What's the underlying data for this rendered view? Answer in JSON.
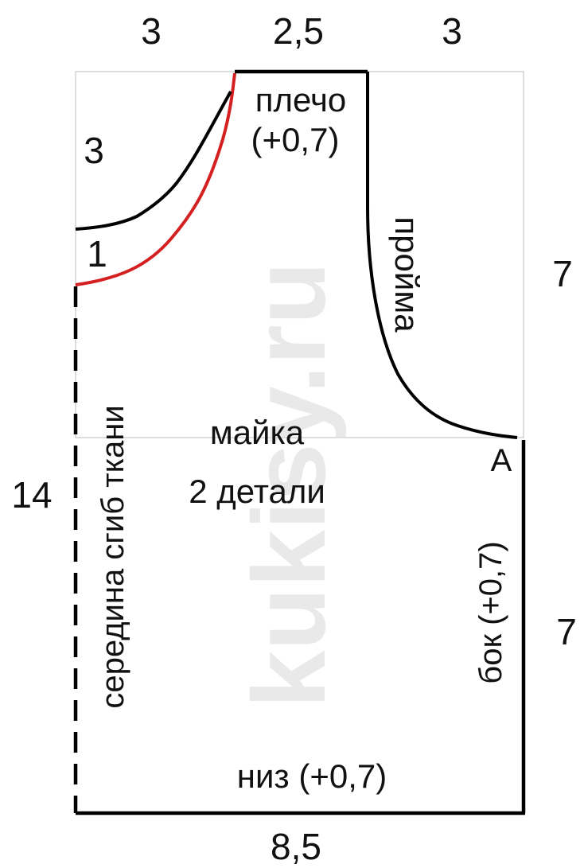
{
  "colors": {
    "outline": "#000000",
    "neckline_option": "#d42020",
    "guide_lines": "#c8c8c8",
    "watermark": "#dcdcdc",
    "text": "#111111"
  },
  "dimensions": {
    "top_left": "3",
    "top_middle": "2,5",
    "top_right": "3",
    "neck_depth_upper": "3",
    "neck_depth_lower": "1",
    "right_upper": "7",
    "right_lower": "7",
    "left": "14",
    "bottom": "8,5"
  },
  "labels": {
    "shoulder": "плечо",
    "shoulder_allowance": "(+0,7)",
    "armhole": "пройма",
    "center_fold": "середина сгиб ткани",
    "title": "майка",
    "pieces": "2 детали",
    "point_a": "А",
    "side": "бок (+0,7)",
    "hem": "низ (+0,7)"
  },
  "watermark": "kukisy.ru"
}
